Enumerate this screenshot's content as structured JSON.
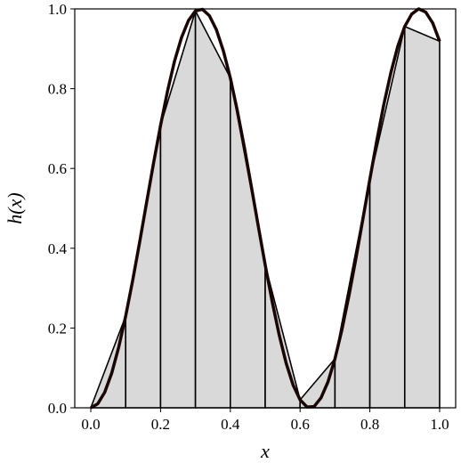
{
  "chart_data": {
    "type": "line",
    "xlabel": "x",
    "ylabel": "h(x)",
    "curve": {
      "color": "#1a0505",
      "x": [
        0,
        0.02,
        0.04,
        0.06,
        0.08,
        0.1,
        0.12,
        0.14,
        0.16,
        0.18,
        0.2,
        0.22,
        0.24,
        0.26,
        0.28,
        0.3,
        0.32,
        0.34,
        0.36,
        0.38,
        0.4,
        0.42,
        0.44,
        0.46,
        0.48,
        0.5,
        0.52,
        0.54,
        0.56,
        0.58,
        0.6,
        0.62,
        0.64,
        0.66,
        0.68,
        0.7,
        0.72,
        0.74,
        0.76,
        0.78,
        0.8,
        0.82,
        0.84,
        0.86,
        0.88,
        0.9,
        0.92,
        0.94,
        0.96,
        0.98,
        1
      ],
      "values": [
        0,
        0.01,
        0.039,
        0.087,
        0.152,
        0.23,
        0.319,
        0.415,
        0.515,
        0.614,
        0.708,
        0.794,
        0.869,
        0.928,
        0.971,
        0.995,
        0.999,
        0.983,
        0.948,
        0.895,
        0.827,
        0.745,
        0.654,
        0.556,
        0.456,
        0.358,
        0.266,
        0.183,
        0.112,
        0.057,
        0.02,
        0.002,
        0.003,
        0.025,
        0.065,
        0.123,
        0.196,
        0.281,
        0.374,
        0.473,
        0.573,
        0.67,
        0.76,
        0.839,
        0.906,
        0.956,
        0.987,
        1.0,
        0.992,
        0.965,
        0.919
      ]
    },
    "samples": {
      "color": "#d9d9d9",
      "x": [
        0,
        0.1,
        0.2,
        0.3,
        0.4,
        0.5,
        0.6,
        0.7,
        0.8,
        0.9,
        1
      ],
      "values": [
        0,
        0.23,
        0.708,
        0.995,
        0.827,
        0.358,
        0.02,
        0.123,
        0.573,
        0.956,
        0.919
      ]
    },
    "xlim": [
      -0.046,
      1.046
    ],
    "ylim": [
      0,
      1
    ],
    "xticks": [
      {
        "value": 0,
        "label": "0.0"
      },
      {
        "value": 0.2,
        "label": "0.2"
      },
      {
        "value": 0.4,
        "label": "0.4"
      },
      {
        "value": 0.6,
        "label": "0.6"
      },
      {
        "value": 0.8,
        "label": "0.8"
      },
      {
        "value": 1,
        "label": "1.0"
      }
    ],
    "yticks": [
      {
        "value": 0,
        "label": "0.0"
      },
      {
        "value": 0.2,
        "label": "0.2"
      },
      {
        "value": 0.4,
        "label": "0.4"
      },
      {
        "value": 0.6,
        "label": "0.6"
      },
      {
        "value": 0.8,
        "label": "0.8"
      },
      {
        "value": 1,
        "label": "1.0"
      }
    ]
  }
}
